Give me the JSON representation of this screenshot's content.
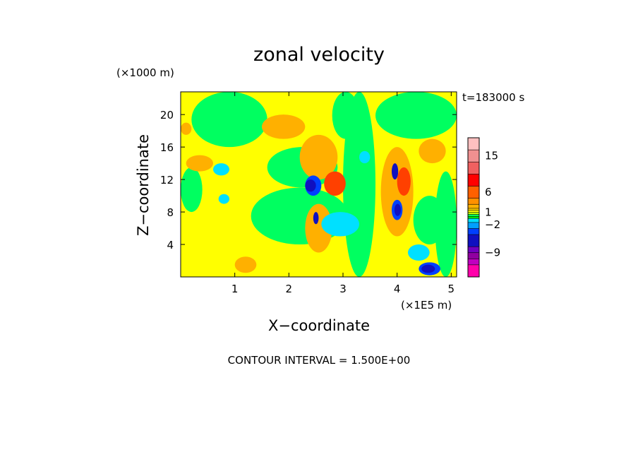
{
  "chart_data": {
    "type": "heatmap",
    "title": "zonal velocity",
    "time_label": "t=183000 s",
    "xlabel": "X−coordinate",
    "ylabel": "Z−coordinate",
    "x_unit": "(×1E5 m)",
    "y_unit": "(×1000 m)",
    "x_ticks": [
      "1",
      "2",
      "3",
      "4",
      "5"
    ],
    "y_ticks": [
      "4",
      "8",
      "12",
      "16",
      "20"
    ],
    "xlim": [
      0,
      5.1
    ],
    "ylim": [
      0,
      22.8
    ],
    "contour_note": "CONTOUR INTERVAL =  1.500E+00",
    "colorbar": {
      "labels": [
        {
          "text": "15",
          "value": 15
        },
        {
          "text": "6",
          "value": 6
        },
        {
          "text": "1",
          "value": 1
        },
        {
          "text": "−2",
          "value": -2
        },
        {
          "text": "−9",
          "value": -9
        }
      ],
      "bands": [
        {
          "lo": -15,
          "hi": -12,
          "color": "#ff00aa"
        },
        {
          "lo": -12,
          "hi": -10.5,
          "color": "#c000c0"
        },
        {
          "lo": -10.5,
          "hi": -9,
          "color": "#9000a0"
        },
        {
          "lo": -9,
          "hi": -7.5,
          "color": "#7000c0"
        },
        {
          "lo": -7.5,
          "hi": -4.5,
          "color": "#1010c0"
        },
        {
          "lo": -4.5,
          "hi": -3,
          "color": "#0040ff"
        },
        {
          "lo": -3,
          "hi": -1.5,
          "color": "#00a0ff"
        },
        {
          "lo": -1.5,
          "hi": -0.5,
          "color": "#00e0ff"
        },
        {
          "lo": -0.5,
          "hi": 0,
          "color": "#00f000"
        },
        {
          "lo": 0,
          "hi": 0.5,
          "color": "#00ff60"
        },
        {
          "lo": 0.5,
          "hi": 1,
          "color": "#c0ff00"
        },
        {
          "lo": 1,
          "hi": 1.5,
          "color": "#ffff00"
        },
        {
          "lo": 1.5,
          "hi": 2,
          "color": "#ffd000"
        },
        {
          "lo": 2,
          "hi": 3,
          "color": "#ffb000"
        },
        {
          "lo": 3,
          "hi": 4.5,
          "color": "#ff9000"
        },
        {
          "lo": 4.5,
          "hi": 7.5,
          "color": "#ff6000"
        },
        {
          "lo": 7.5,
          "hi": 10.5,
          "color": "#ff0000"
        },
        {
          "lo": 10.5,
          "hi": 13.5,
          "color": "#f06060"
        },
        {
          "lo": 13.5,
          "hi": 16.5,
          "color": "#f09090"
        },
        {
          "lo": 16.5,
          "hi": 19.5,
          "color": "#ffc0c0"
        }
      ]
    },
    "field_categories": {
      "yellow": "#ffff00",
      "green": "#00ff60",
      "orange": "#ffb000",
      "red": "#ff4000",
      "cyan": "#00e0ff",
      "blue": "#0040ff",
      "darkblue": "#1010c0"
    },
    "regions": [
      {
        "color": "yellow",
        "x": 0.0,
        "y": 0.0,
        "w": 5.1,
        "h": 22.8
      },
      {
        "color": "green",
        "x": 0.2,
        "y": 16.0,
        "w": 1.4,
        "h": 6.8
      },
      {
        "color": "green",
        "x": 1.3,
        "y": 4.0,
        "w": 1.8,
        "h": 7.0
      },
      {
        "color": "green",
        "x": 1.6,
        "y": 11.0,
        "w": 1.3,
        "h": 5.0
      },
      {
        "color": "green",
        "x": 3.0,
        "y": 0.0,
        "w": 0.6,
        "h": 22.8
      },
      {
        "color": "green",
        "x": 3.6,
        "y": 17.0,
        "w": 1.5,
        "h": 5.8
      },
      {
        "color": "green",
        "x": 4.7,
        "y": 0.0,
        "w": 0.4,
        "h": 13.0
      },
      {
        "color": "green",
        "x": 0.0,
        "y": 8.0,
        "w": 0.4,
        "h": 5.5
      },
      {
        "color": "green",
        "x": 4.3,
        "y": 4.0,
        "w": 0.6,
        "h": 6.0
      },
      {
        "color": "green",
        "x": 2.8,
        "y": 17.0,
        "w": 0.5,
        "h": 5.8
      },
      {
        "color": "orange",
        "x": 0.1,
        "y": 13.0,
        "w": 0.5,
        "h": 2.0
      },
      {
        "color": "orange",
        "x": 1.5,
        "y": 17.0,
        "w": 0.8,
        "h": 3.0
      },
      {
        "color": "orange",
        "x": 2.2,
        "y": 12.0,
        "w": 0.7,
        "h": 5.5
      },
      {
        "color": "orange",
        "x": 2.3,
        "y": 3.0,
        "w": 0.5,
        "h": 6.0
      },
      {
        "color": "orange",
        "x": 3.7,
        "y": 5.0,
        "w": 0.6,
        "h": 11.0
      },
      {
        "color": "orange",
        "x": 4.4,
        "y": 14.0,
        "w": 0.5,
        "h": 3.0
      },
      {
        "color": "orange",
        "x": 0.0,
        "y": 17.5,
        "w": 0.2,
        "h": 1.5
      },
      {
        "color": "orange",
        "x": 1.0,
        "y": 0.5,
        "w": 0.4,
        "h": 2.0
      },
      {
        "color": "red",
        "x": 2.65,
        "y": 10.0,
        "w": 0.4,
        "h": 3.0
      },
      {
        "color": "red",
        "x": 4.0,
        "y": 10.0,
        "w": 0.25,
        "h": 3.5
      },
      {
        "color": "cyan",
        "x": 0.6,
        "y": 12.5,
        "w": 0.3,
        "h": 1.5
      },
      {
        "color": "cyan",
        "x": 2.6,
        "y": 5.0,
        "w": 0.7,
        "h": 3.0
      },
      {
        "color": "cyan",
        "x": 3.3,
        "y": 14.0,
        "w": 0.2,
        "h": 1.5
      },
      {
        "color": "cyan",
        "x": 4.2,
        "y": 2.0,
        "w": 0.4,
        "h": 2.0
      },
      {
        "color": "cyan",
        "x": 0.7,
        "y": 9.0,
        "w": 0.2,
        "h": 1.2
      },
      {
        "color": "blue",
        "x": 2.3,
        "y": 10.0,
        "w": 0.3,
        "h": 2.5
      },
      {
        "color": "blue",
        "x": 3.9,
        "y": 7.0,
        "w": 0.2,
        "h": 2.5
      },
      {
        "color": "blue",
        "x": 4.4,
        "y": 0.2,
        "w": 0.4,
        "h": 1.6
      },
      {
        "color": "darkblue",
        "x": 2.3,
        "y": 10.5,
        "w": 0.2,
        "h": 1.5
      },
      {
        "color": "darkblue",
        "x": 3.9,
        "y": 12.0,
        "w": 0.12,
        "h": 2.0
      },
      {
        "color": "darkblue",
        "x": 3.95,
        "y": 7.5,
        "w": 0.12,
        "h": 1.5
      },
      {
        "color": "darkblue",
        "x": 4.45,
        "y": 0.5,
        "w": 0.25,
        "h": 1.0
      },
      {
        "color": "darkblue",
        "x": 2.45,
        "y": 6.5,
        "w": 0.1,
        "h": 1.5
      }
    ]
  }
}
